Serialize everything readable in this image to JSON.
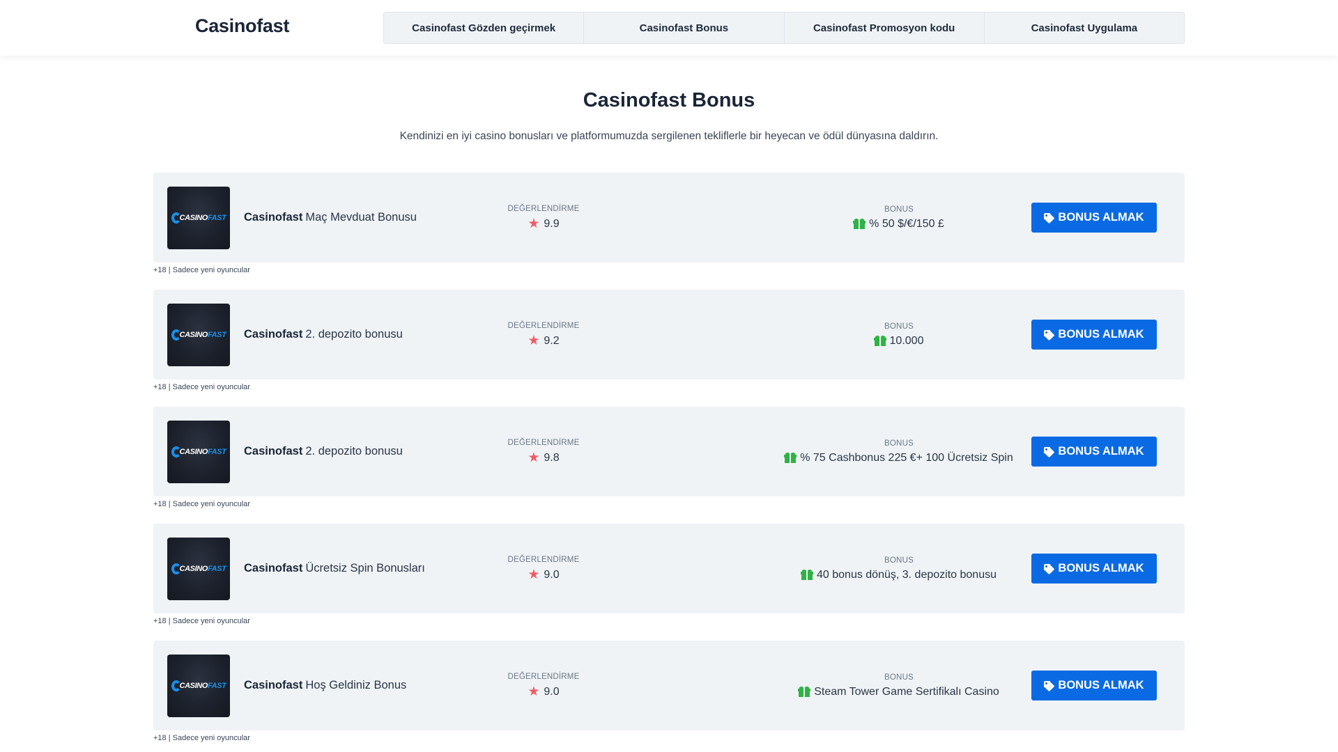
{
  "header": {
    "logo": "Casinofast",
    "nav": [
      {
        "label": "Casinofast Gözden geçirmek"
      },
      {
        "label": "Casinofast Bonus"
      },
      {
        "label": "Casinofast Promosyon kodu"
      },
      {
        "label": "Casinofast Uygulama"
      }
    ]
  },
  "page": {
    "title": "Casinofast Bonus",
    "subtitle": "Kendinizi en iyi casino bonusları ve platformumuzda sergilenen tekliflerle bir heyecan ve ödül dünyasına daldırın."
  },
  "labels": {
    "rating": "DEĞERLENDİRME",
    "bonus": "BONUS",
    "cta": "BONUS ALMAK",
    "brand": "Casinofast",
    "logo_casino": "CASINO",
    "logo_fast": "FAST"
  },
  "colors": {
    "accent": "#0a6ae3",
    "star": "#f25a67",
    "gift": "#2fb344",
    "card_bg": "#eff3f6"
  },
  "offers": [
    {
      "title": "Maç Mevduat Bonusu",
      "rating": "9.9",
      "bonus": "% 50 $/€/150 £",
      "note": "+18 | Sadece yeni oyuncular"
    },
    {
      "title": "2. depozito bonusu",
      "rating": "9.2",
      "bonus": "10.000",
      "note": "+18 | Sadece yeni oyuncular"
    },
    {
      "title": "2. depozito bonusu",
      "rating": "9.8",
      "bonus": "% 75 Cashbonus 225 €+ 100 Ücretsiz Spin",
      "note": "+18 | Sadece yeni oyuncular"
    },
    {
      "title": "Ücretsiz Spin Bonusları",
      "rating": "9.0",
      "bonus": "40 bonus dönüş, 3. depozito bonusu",
      "note": "+18 | Sadece yeni oyuncular"
    },
    {
      "title": "Hoş Geldiniz Bonus",
      "rating": "9.0",
      "bonus": "Steam Tower Game Sertifikalı Casino",
      "note": "+18 | Sadece yeni oyuncular"
    }
  ]
}
